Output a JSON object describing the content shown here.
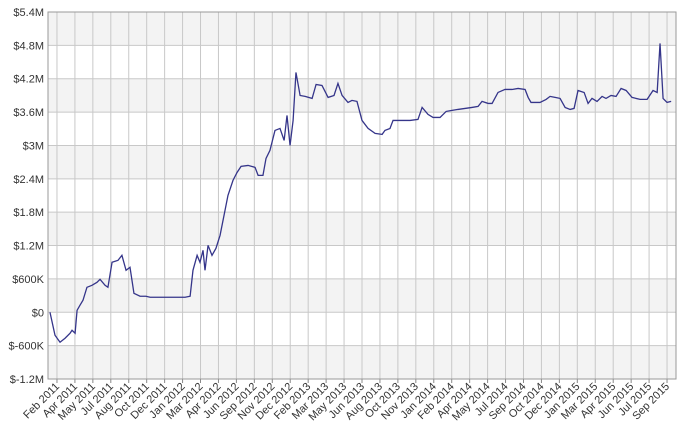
{
  "chart_data": {
    "type": "line",
    "color": "#35358a",
    "grid": true,
    "xlim": [
      0,
      35
    ],
    "xticks": [
      {
        "value": 0.5,
        "label": "Feb 2011"
      },
      {
        "value": 1.5,
        "label": "Apr 2011"
      },
      {
        "value": 2.5,
        "label": "May 2011"
      },
      {
        "value": 3.5,
        "label": "Jul 2011"
      },
      {
        "value": 4.5,
        "label": "Aug 2011"
      },
      {
        "value": 5.5,
        "label": "Oct 2011"
      },
      {
        "value": 6.5,
        "label": "Dec 2011"
      },
      {
        "value": 7.5,
        "label": "Jan 2012"
      },
      {
        "value": 8.5,
        "label": "Mar 2012"
      },
      {
        "value": 9.5,
        "label": "Apr 2012"
      },
      {
        "value": 10.5,
        "label": "Jun 2012"
      },
      {
        "value": 11.5,
        "label": "Sep 2012"
      },
      {
        "value": 12.5,
        "label": "Nov 2012"
      },
      {
        "value": 13.5,
        "label": "Dec 2012"
      },
      {
        "value": 14.5,
        "label": "Feb 2013"
      },
      {
        "value": 15.5,
        "label": "Mar 2013"
      },
      {
        "value": 16.5,
        "label": "May 2013"
      },
      {
        "value": 17.5,
        "label": "Jun 2013"
      },
      {
        "value": 18.5,
        "label": "Aug 2013"
      },
      {
        "value": 19.5,
        "label": "Oct 2013"
      },
      {
        "value": 20.5,
        "label": "Nov 2013"
      },
      {
        "value": 21.5,
        "label": "Jan 2014"
      },
      {
        "value": 22.5,
        "label": "Feb 2014"
      },
      {
        "value": 23.5,
        "label": "Apr 2014"
      },
      {
        "value": 24.5,
        "label": "May 2014"
      },
      {
        "value": 25.5,
        "label": "Jul 2014"
      },
      {
        "value": 26.5,
        "label": "Sep 2014"
      },
      {
        "value": 27.5,
        "label": "Oct 2014"
      },
      {
        "value": 28.5,
        "label": "Dec 2014"
      },
      {
        "value": 29.5,
        "label": "Jan 2015"
      },
      {
        "value": 30.5,
        "label": "Mar 2015"
      },
      {
        "value": 31.5,
        "label": "Apr 2015"
      },
      {
        "value": 32.5,
        "label": "Jun 2015"
      },
      {
        "value": 33.5,
        "label": "Jul 2015"
      },
      {
        "value": 34.5,
        "label": "Sep 2015"
      }
    ],
    "ylim": [
      -1200000,
      5400000
    ],
    "yticks": [
      {
        "value": -1200000,
        "label": "$-1.2M"
      },
      {
        "value": -600000,
        "label": "$-600K"
      },
      {
        "value": 0,
        "label": "$0"
      },
      {
        "value": 600000,
        "label": "$600K"
      },
      {
        "value": 1200000,
        "label": "$1.2M"
      },
      {
        "value": 1800000,
        "label": "$1.8M"
      },
      {
        "value": 2400000,
        "label": "$2.4M"
      },
      {
        "value": 3000000,
        "label": "$3M"
      },
      {
        "value": 3600000,
        "label": "$3.6M"
      },
      {
        "value": 4200000,
        "label": "$4.2M"
      },
      {
        "value": 4800000,
        "label": "$4.8M"
      },
      {
        "value": 5400000,
        "label": "$5.4M"
      }
    ],
    "x": [
      0.11,
      0.39,
      0.67,
      0.95,
      1.23,
      1.34,
      1.51,
      1.62,
      1.78,
      1.95,
      2.17,
      2.45,
      2.73,
      2.9,
      3.18,
      3.34,
      3.57,
      3.9,
      4.12,
      4.35,
      4.57,
      4.79,
      5.13,
      5.46,
      5.69,
      6.52,
      7.08,
      7.64,
      7.92,
      8.08,
      8.31,
      8.47,
      8.64,
      8.75,
      8.92,
      9.14,
      9.36,
      9.59,
      9.81,
      10.03,
      10.31,
      10.54,
      10.76,
      11.15,
      11.54,
      11.71,
      11.98,
      12.15,
      12.37,
      12.65,
      12.93,
      13.16,
      13.32,
      13.49,
      13.66,
      13.82,
      14.05,
      14.33,
      14.72,
      14.94,
      15.27,
      15.61,
      15.94,
      16.16,
      16.39,
      16.72,
      16.94,
      17.22,
      17.5,
      17.84,
      18.23,
      18.62,
      18.78,
      19.06,
      19.23,
      19.62,
      20.18,
      20.62,
      20.85,
      21.18,
      21.46,
      21.85,
      22.19,
      22.52,
      22.85,
      23.24,
      23.63,
      23.97,
      24.19,
      24.53,
      24.75,
      25.08,
      25.47,
      25.86,
      26.2,
      26.59,
      26.76,
      26.92,
      27.2,
      27.42,
      27.76,
      27.98,
      28.26,
      28.54,
      28.82,
      29.1,
      29.32,
      29.54,
      29.88,
      30.1,
      30.32,
      30.6,
      30.88,
      31.1,
      31.38,
      31.66,
      31.94,
      32.22,
      32.55,
      33.0,
      33.39,
      33.72,
      33.95,
      34.11,
      34.28,
      34.5,
      34.73
    ],
    "values": [
      0,
      -413000,
      -539000,
      -467000,
      -377000,
      -323000,
      -377000,
      36000,
      126000,
      216000,
      449000,
      485000,
      539000,
      593000,
      485000,
      449000,
      899000,
      934000,
      1024000,
      755000,
      809000,
      341000,
      288000,
      288000,
      270000,
      270000,
      270000,
      270000,
      288000,
      755000,
      1024000,
      899000,
      1114000,
      755000,
      1204000,
      1024000,
      1150000,
      1384000,
      1743000,
      2102000,
      2372000,
      2516000,
      2624000,
      2641000,
      2606000,
      2462000,
      2462000,
      2767000,
      2911000,
      3270000,
      3306000,
      3091000,
      3540000,
      3001000,
      3450000,
      4313000,
      3899000,
      3882000,
      3846000,
      4097000,
      4079000,
      3864000,
      3899000,
      4115000,
      3899000,
      3774000,
      3810000,
      3792000,
      3450000,
      3306000,
      3216000,
      3199000,
      3271000,
      3306000,
      3450000,
      3450000,
      3450000,
      3468000,
      3684000,
      3558000,
      3504000,
      3504000,
      3612000,
      3630000,
      3648000,
      3666000,
      3684000,
      3702000,
      3792000,
      3756000,
      3756000,
      3953000,
      4007000,
      4007000,
      4025000,
      4007000,
      3864000,
      3774000,
      3774000,
      3774000,
      3828000,
      3882000,
      3864000,
      3846000,
      3684000,
      3648000,
      3666000,
      3989000,
      3953000,
      3756000,
      3846000,
      3792000,
      3882000,
      3846000,
      3899000,
      3882000,
      4025000,
      3989000,
      3864000,
      3828000,
      3828000,
      3989000,
      3953000,
      4834000,
      3846000,
      3774000,
      3792000
    ]
  }
}
